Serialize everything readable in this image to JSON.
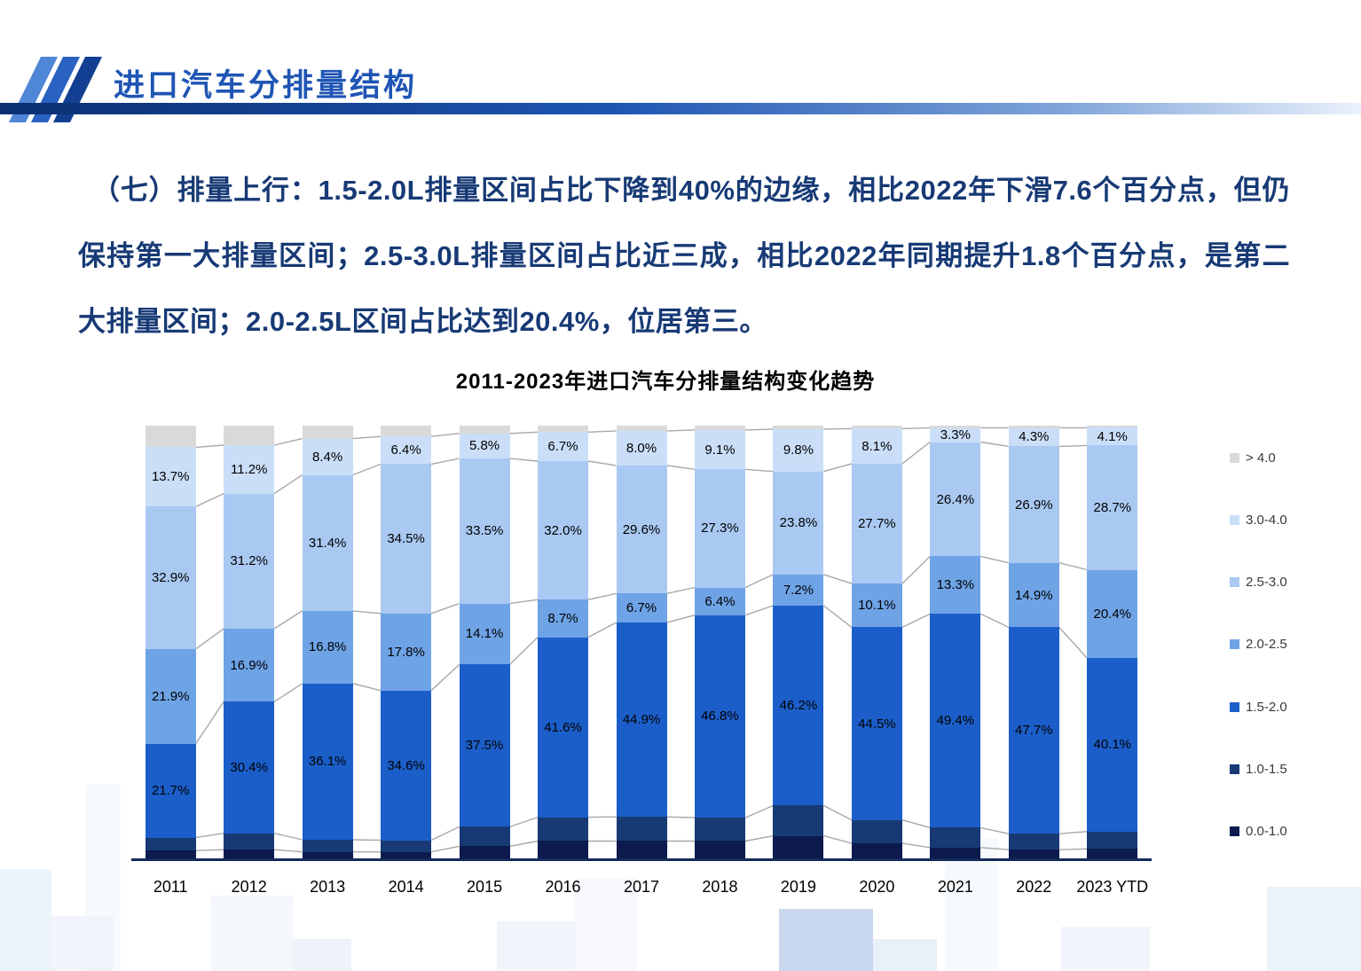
{
  "header": {
    "title": "进口汽车分排量结构"
  },
  "body": {
    "paragraph": "（七）排量上行：1.5-2.0L排量区间占比下降到40%的边缘，相比2022年下滑7.6个百分点，但仍保持第一大排量区间；2.5-3.0L排量区间占比近三成，相比2022年同期提升1.8个百分点，是第二大排量区间；2.0-2.5L区间占比达到20.4%，位居第三。"
  },
  "chart_data": {
    "type": "bar",
    "stacked": true,
    "percent_stacked": true,
    "title": "2011-2023年进口汽车分排量结构变化趋势",
    "categories": [
      "2011",
      "2012",
      "2013",
      "2014",
      "2015",
      "2016",
      "2017",
      "2018",
      "2019",
      "2020",
      "2021",
      "2022",
      "2023 YTD"
    ],
    "series": [
      {
        "name": "0.0-1.0",
        "color": "#0c1a4e",
        "labeled": false,
        "values": [
          1.8,
          2.0,
          1.5,
          1.5,
          2.8,
          4.0,
          4.0,
          4.0,
          5.2,
          3.5,
          2.5,
          2.0,
          2.2
        ]
      },
      {
        "name": "1.0-1.5",
        "color": "#173a75",
        "labeled": false,
        "values": [
          3.0,
          3.8,
          2.8,
          2.7,
          4.5,
          5.5,
          5.6,
          5.4,
          7.0,
          5.4,
          4.6,
          3.7,
          4.0
        ]
      },
      {
        "name": "1.5-2.0",
        "color": "#1b5ec9",
        "labeled": true,
        "values": [
          21.7,
          30.4,
          36.1,
          34.6,
          37.5,
          41.6,
          44.9,
          46.8,
          46.2,
          44.5,
          49.4,
          47.7,
          40.1
        ]
      },
      {
        "name": "2.0-2.5",
        "color": "#6ea3e6",
        "labeled": true,
        "values": [
          21.9,
          16.9,
          16.8,
          17.8,
          14.1,
          8.7,
          6.7,
          6.4,
          7.2,
          10.1,
          13.3,
          14.9,
          20.4
        ]
      },
      {
        "name": "2.5-3.0",
        "color": "#a9c9f2",
        "labeled": true,
        "values": [
          32.9,
          31.2,
          31.4,
          34.5,
          33.5,
          32.0,
          29.6,
          27.3,
          23.8,
          27.7,
          26.4,
          26.9,
          28.7
        ]
      },
      {
        "name": "3.0-4.0",
        "color": "#cadef8",
        "labeled": true,
        "values": [
          13.7,
          11.2,
          8.4,
          6.4,
          5.8,
          6.7,
          8.0,
          9.1,
          9.8,
          8.1,
          3.3,
          4.3,
          4.1
        ]
      },
      {
        "name": "> 4.0",
        "color": "#d9d9d9",
        "labeled": false,
        "values": [
          5.0,
          4.5,
          3.0,
          2.5,
          1.8,
          1.5,
          1.2,
          1.0,
          0.8,
          0.7,
          0.5,
          0.5,
          0.5
        ]
      }
    ],
    "legend": [
      "> 4.0",
      "3.0-4.0",
      "2.5-3.0",
      "2.0-2.5",
      "1.5-2.0",
      "1.0-1.5",
      "0.0-1.0"
    ],
    "legend_position": "right",
    "ylim": [
      0,
      100
    ],
    "grid": false,
    "value_suffix": "%"
  }
}
